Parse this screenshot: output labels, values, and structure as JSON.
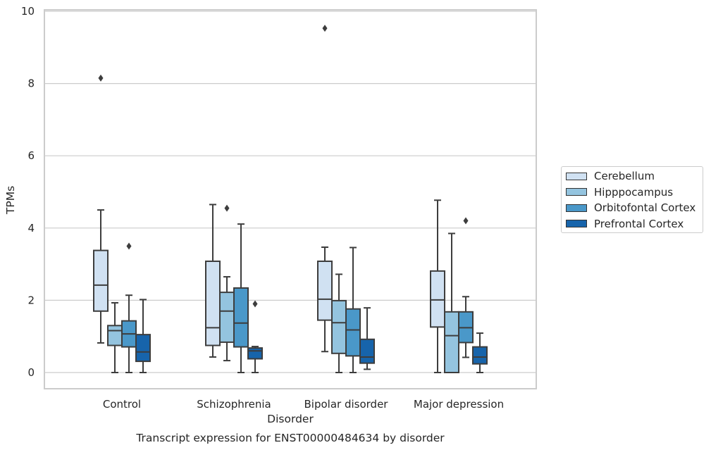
{
  "chart_data": {
    "type": "box",
    "title": "Transcript expression for ENST00000484634 by disorder",
    "xlabel": "Disorder",
    "ylabel": "TPMs",
    "ylim": [
      -0.45,
      10
    ],
    "yticks": [
      0,
      2,
      4,
      6,
      8,
      10
    ],
    "grid": true,
    "legend_position": "right",
    "categories": [
      "Control",
      "Schizophrenia",
      "Bipolar disorder",
      "Major depression"
    ],
    "series": [
      {
        "name": "Cerebellum",
        "color": "#d0e1f2",
        "boxes": [
          {
            "whisker_low": 0.82,
            "q1": 1.7,
            "median": 2.42,
            "q3": 3.38,
            "whisker_high": 4.5,
            "outliers": [
              8.15
            ]
          },
          {
            "whisker_low": 0.43,
            "q1": 0.75,
            "median": 1.24,
            "q3": 3.08,
            "whisker_high": 4.65,
            "outliers": []
          },
          {
            "whisker_low": 0.58,
            "q1": 1.45,
            "median": 2.03,
            "q3": 3.08,
            "whisker_high": 3.47,
            "outliers": [
              9.53
            ]
          },
          {
            "whisker_low": 0.0,
            "q1": 1.26,
            "median": 2.01,
            "q3": 2.81,
            "whisker_high": 4.77,
            "outliers": []
          }
        ]
      },
      {
        "name": "Hipppocampus",
        "color": "#94c4df",
        "boxes": [
          {
            "whisker_low": 0.0,
            "q1": 0.75,
            "median": 1.16,
            "q3": 1.3,
            "whisker_high": 1.93,
            "outliers": []
          },
          {
            "whisker_low": 0.33,
            "q1": 0.84,
            "median": 1.7,
            "q3": 2.22,
            "whisker_high": 2.65,
            "outliers": [
              4.55
            ]
          },
          {
            "whisker_low": 0.0,
            "q1": 0.53,
            "median": 1.38,
            "q3": 1.99,
            "whisker_high": 2.72,
            "outliers": []
          },
          {
            "whisker_low": 0.0,
            "q1": 0.0,
            "median": 1.02,
            "q3": 1.68,
            "whisker_high": 3.85,
            "outliers": []
          }
        ]
      },
      {
        "name": "Orbitofontal Cortex",
        "color": "#4a98c9",
        "boxes": [
          {
            "whisker_low": 0.0,
            "q1": 0.71,
            "median": 1.07,
            "q3": 1.43,
            "whisker_high": 2.14,
            "outliers": [
              3.5
            ]
          },
          {
            "whisker_low": 0.0,
            "q1": 0.71,
            "median": 1.37,
            "q3": 2.34,
            "whisker_high": 4.11,
            "outliers": []
          },
          {
            "whisker_low": 0.0,
            "q1": 0.46,
            "median": 1.18,
            "q3": 1.76,
            "whisker_high": 3.46,
            "outliers": []
          },
          {
            "whisker_low": 0.42,
            "q1": 0.83,
            "median": 1.24,
            "q3": 1.68,
            "whisker_high": 2.1,
            "outliers": [
              4.2
            ]
          }
        ]
      },
      {
        "name": "Prefrontal Cortex",
        "color": "#1764ab",
        "boxes": [
          {
            "whisker_low": 0.0,
            "q1": 0.31,
            "median": 0.57,
            "q3": 1.05,
            "whisker_high": 2.02,
            "outliers": []
          },
          {
            "whisker_low": 0.0,
            "q1": 0.38,
            "median": 0.6,
            "q3": 0.68,
            "whisker_high": 0.72,
            "outliers": [
              1.9
            ]
          },
          {
            "whisker_low": 0.09,
            "q1": 0.26,
            "median": 0.43,
            "q3": 0.92,
            "whisker_high": 1.79,
            "outliers": []
          },
          {
            "whisker_low": 0.0,
            "q1": 0.24,
            "median": 0.43,
            "q3": 0.71,
            "whisker_high": 1.09,
            "outliers": []
          }
        ]
      }
    ]
  }
}
